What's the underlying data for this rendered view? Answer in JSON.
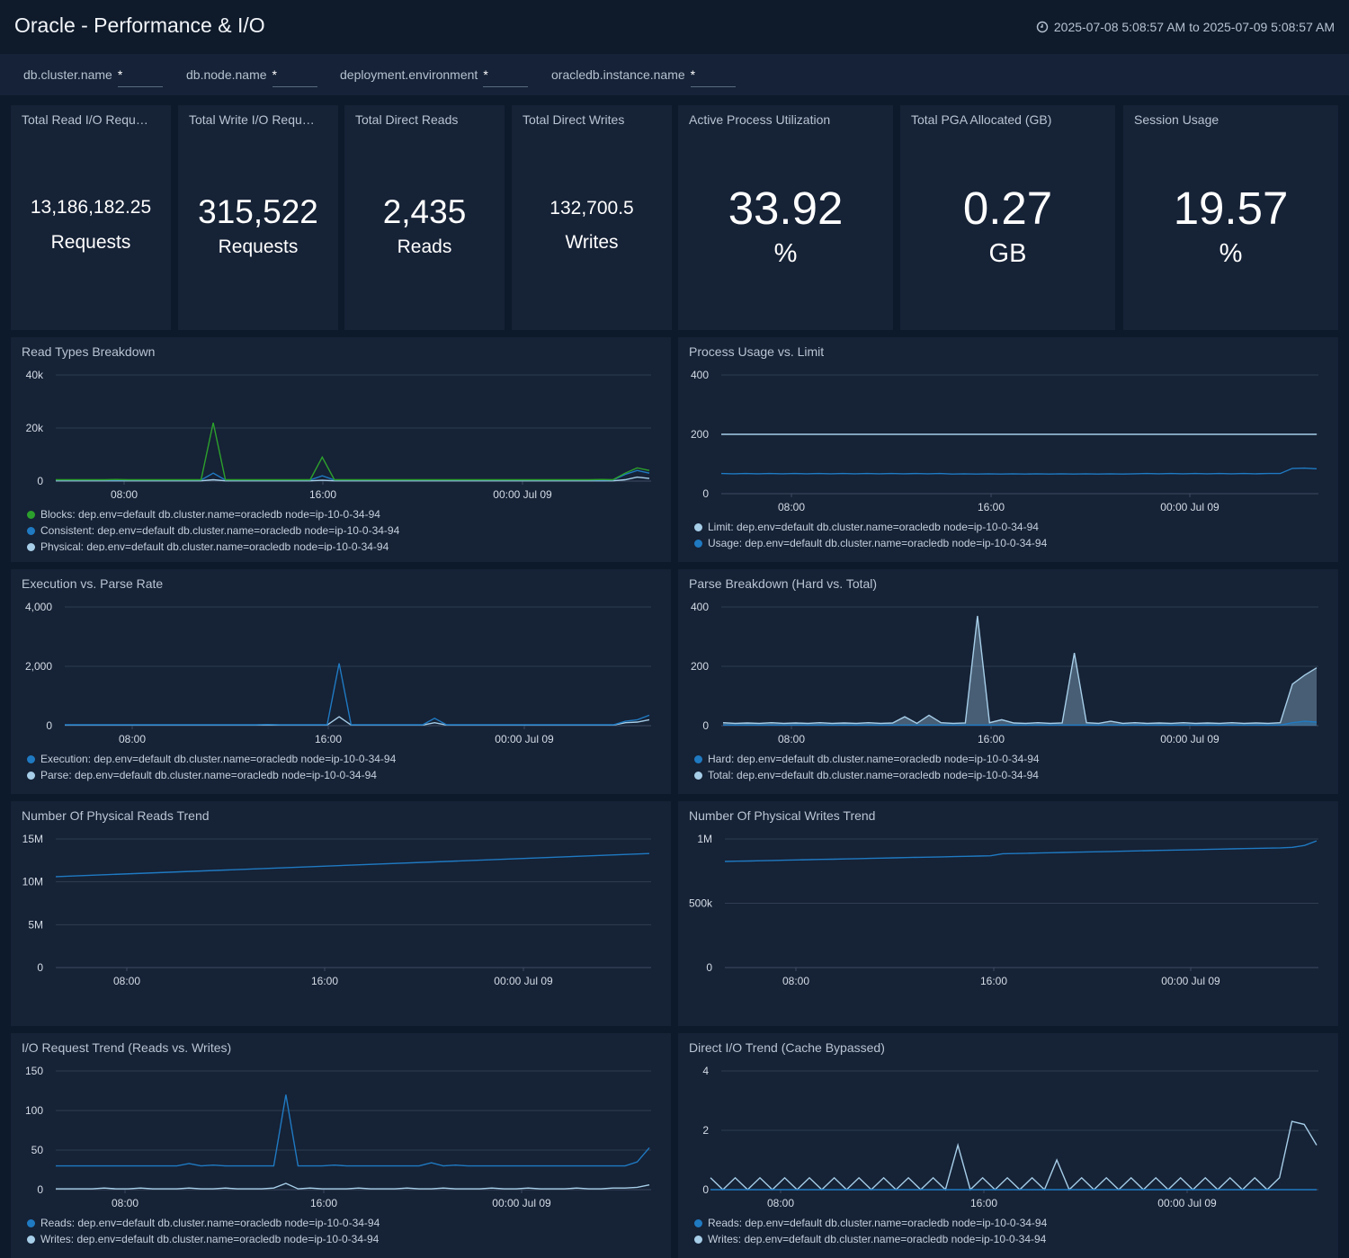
{
  "header": {
    "title": "Oracle - Performance & I/O",
    "time_range": "2025-07-08 5:08:57 AM to 2025-07-09 5:08:57 AM",
    "time_icon": "clock-icon"
  },
  "filters": [
    {
      "label": "db.cluster.name",
      "value": "*"
    },
    {
      "label": "db.node.name",
      "value": "*"
    },
    {
      "label": "deployment.environment",
      "value": "*"
    },
    {
      "label": "oracledb.instance.name",
      "value": "*"
    }
  ],
  "stats": [
    {
      "title": "Total Read I/O Requ…",
      "value": "13,186,182.25",
      "unit": "Requests"
    },
    {
      "title": "Total Write I/O Requ…",
      "value": "315,522",
      "unit": "Requests"
    },
    {
      "title": "Total Direct Reads",
      "value": "2,435",
      "unit": "Reads"
    },
    {
      "title": "Total Direct Writes",
      "value": "132,700.5",
      "unit": "Writes"
    },
    {
      "title": "Active Process Utilization",
      "value": "33.92",
      "unit": "%"
    },
    {
      "title": "Total PGA Allocated (GB)",
      "value": "0.27",
      "unit": "GB"
    },
    {
      "title": "Session Usage",
      "value": "19.57",
      "unit": "%"
    }
  ],
  "colors": {
    "blue": "#1f7ac2",
    "lightblue": "#a6cee8",
    "green": "#2ca02c",
    "grid": "#2f3d52"
  },
  "chart_data": [
    {
      "type": "line",
      "title": "Read Types Breakdown",
      "x_ticks": [
        "08:00",
        "16:00",
        "00:00 Jul 09"
      ],
      "y_ticks": [
        "0",
        "20k",
        "40k"
      ],
      "ylim": [
        0,
        40000
      ],
      "series": [
        {
          "name": "Blocks: dep.env=default db.cluster.name=oracledb node=ip-10-0-34-94",
          "color": "#2ca02c",
          "values": [
            500,
            500,
            500,
            500,
            500,
            600,
            500,
            500,
            500,
            500,
            500,
            500,
            500,
            22000,
            500,
            500,
            500,
            500,
            500,
            500,
            500,
            500,
            9000,
            500,
            500,
            500,
            500,
            500,
            500,
            500,
            500,
            500,
            500,
            500,
            500,
            500,
            500,
            500,
            500,
            500,
            500,
            500,
            500,
            500,
            500,
            600,
            500,
            3000,
            5000,
            4000
          ]
        },
        {
          "name": "Consistent: dep.env=default db.cluster.name=oracledb node=ip-10-0-34-94",
          "color": "#1f7ac2",
          "values": [
            400,
            400,
            400,
            400,
            400,
            400,
            400,
            400,
            400,
            400,
            400,
            400,
            400,
            3000,
            400,
            400,
            400,
            400,
            400,
            400,
            400,
            400,
            2000,
            400,
            400,
            400,
            400,
            400,
            400,
            400,
            400,
            400,
            400,
            400,
            400,
            400,
            400,
            400,
            400,
            400,
            400,
            400,
            400,
            400,
            400,
            400,
            400,
            2500,
            4000,
            3000
          ]
        },
        {
          "name": "Physical: dep.env=default db.cluster.name=oracledb node=ip-10-0-34-94",
          "color": "#a6cee8",
          "values": [
            100,
            100,
            100,
            100,
            100,
            100,
            100,
            100,
            100,
            100,
            100,
            100,
            100,
            500,
            100,
            100,
            100,
            100,
            100,
            100,
            100,
            100,
            300,
            100,
            100,
            100,
            100,
            100,
            100,
            100,
            100,
            100,
            100,
            100,
            100,
            100,
            100,
            100,
            100,
            100,
            100,
            100,
            100,
            100,
            100,
            100,
            100,
            500,
            1500,
            1000
          ]
        }
      ]
    },
    {
      "type": "line",
      "title": "Process Usage vs. Limit",
      "x_ticks": [
        "08:00",
        "16:00",
        "00:00 Jul 09"
      ],
      "y_ticks": [
        "0",
        "200",
        "400"
      ],
      "ylim": [
        0,
        400
      ],
      "series": [
        {
          "name": "Limit: dep.env=default db.cluster.name=oracledb node=ip-10-0-34-94",
          "color": "#a6cee8",
          "values": [
            200,
            200,
            200,
            200,
            200,
            200,
            200,
            200,
            200,
            200,
            200,
            200,
            200,
            200,
            200,
            200,
            200,
            200,
            200,
            200,
            200,
            200,
            200,
            200,
            200,
            200,
            200,
            200,
            200,
            200,
            200,
            200,
            200,
            200,
            200,
            200,
            200,
            200,
            200,
            200,
            200,
            200,
            200,
            200,
            200,
            200,
            200,
            200,
            200,
            200
          ]
        },
        {
          "name": "Usage: dep.env=default db.cluster.name=oracledb node=ip-10-0-34-94",
          "color": "#1f7ac2",
          "values": [
            68,
            67,
            68,
            67,
            68,
            67,
            68,
            67,
            68,
            67,
            68,
            67,
            68,
            67,
            68,
            67,
            68,
            67,
            68,
            66,
            67,
            66,
            67,
            66,
            67,
            66,
            67,
            66,
            67,
            66,
            67,
            66,
            67,
            66,
            67,
            68,
            67,
            68,
            67,
            68,
            67,
            68,
            67,
            68,
            67,
            68,
            68,
            85,
            86,
            84
          ]
        }
      ]
    },
    {
      "type": "line",
      "title": "Execution vs. Parse Rate",
      "x_ticks": [
        "08:00",
        "16:00",
        "00:00 Jul 09"
      ],
      "y_ticks": [
        "0",
        "2,000",
        "4,000"
      ],
      "ylim": [
        0,
        4000
      ],
      "series": [
        {
          "name": "Execution: dep.env=default db.cluster.name=oracledb node=ip-10-0-34-94",
          "color": "#1f7ac2",
          "values": [
            30,
            30,
            30,
            30,
            30,
            30,
            30,
            30,
            30,
            30,
            30,
            30,
            30,
            30,
            30,
            30,
            30,
            40,
            30,
            30,
            30,
            30,
            30,
            2100,
            30,
            30,
            30,
            30,
            30,
            30,
            30,
            250,
            30,
            30,
            30,
            30,
            30,
            30,
            30,
            30,
            30,
            30,
            30,
            30,
            30,
            30,
            30,
            150,
            200,
            350
          ]
        },
        {
          "name": "Parse: dep.env=default db.cluster.name=oracledb node=ip-10-0-34-94",
          "color": "#a6cee8",
          "values": [
            20,
            20,
            20,
            20,
            20,
            20,
            20,
            20,
            20,
            20,
            20,
            20,
            20,
            20,
            20,
            20,
            20,
            20,
            20,
            20,
            20,
            20,
            20,
            300,
            20,
            20,
            20,
            20,
            20,
            20,
            20,
            100,
            20,
            20,
            20,
            20,
            20,
            20,
            20,
            20,
            20,
            20,
            20,
            20,
            20,
            20,
            20,
            100,
            120,
            200
          ]
        }
      ]
    },
    {
      "type": "area",
      "title": "Parse Breakdown (Hard vs. Total)",
      "x_ticks": [
        "08:00",
        "16:00",
        "00:00 Jul 09"
      ],
      "y_ticks": [
        "0",
        "200",
        "400"
      ],
      "ylim": [
        0,
        400
      ],
      "series": [
        {
          "name": "Hard: dep.env=default db.cluster.name=oracledb node=ip-10-0-34-94",
          "color": "#1f7ac2",
          "values": [
            2,
            2,
            2,
            2,
            2,
            2,
            2,
            2,
            2,
            2,
            2,
            2,
            2,
            2,
            2,
            2,
            2,
            2,
            2,
            2,
            2,
            2,
            2,
            2,
            2,
            2,
            2,
            2,
            2,
            2,
            2,
            2,
            2,
            2,
            2,
            2,
            2,
            2,
            2,
            2,
            2,
            2,
            2,
            2,
            2,
            2,
            2,
            10,
            15,
            12
          ]
        },
        {
          "name": "Total: dep.env=default db.cluster.name=oracledb node=ip-10-0-34-94",
          "color": "#a6cee8",
          "values": [
            10,
            8,
            9,
            8,
            10,
            8,
            9,
            8,
            10,
            8,
            9,
            8,
            10,
            8,
            9,
            30,
            8,
            35,
            10,
            8,
            9,
            370,
            10,
            20,
            9,
            8,
            10,
            8,
            9,
            245,
            10,
            8,
            15,
            8,
            10,
            8,
            9,
            8,
            10,
            8,
            9,
            8,
            10,
            8,
            9,
            8,
            10,
            140,
            170,
            195
          ]
        }
      ]
    },
    {
      "type": "line",
      "title": "Number Of Physical Reads Trend",
      "x_ticks": [
        "08:00",
        "16:00",
        "00:00 Jul 09"
      ],
      "y_ticks": [
        "0",
        "5M",
        "10M",
        "15M"
      ],
      "ylim": [
        0,
        15000000
      ],
      "series": [
        {
          "name": "",
          "color": "#1f7ac2",
          "values": [
            10600000,
            13300000
          ]
        }
      ]
    },
    {
      "type": "line",
      "title": "Number Of Physical Writes Trend",
      "x_ticks": [
        "08:00",
        "16:00",
        "00:00 Jul 09"
      ],
      "y_ticks": [
        "0",
        "500k",
        "1M"
      ],
      "ylim": [
        0,
        1000000
      ],
      "series": [
        {
          "name": "",
          "color": "#1f7ac2",
          "values": [
            825000,
            827000,
            829000,
            831000,
            833000,
            835000,
            837000,
            839000,
            841000,
            843000,
            845000,
            847000,
            849000,
            851000,
            853000,
            855000,
            857000,
            859000,
            861000,
            863000,
            865000,
            867000,
            869000,
            885000,
            887000,
            889000,
            891000,
            893000,
            895000,
            897000,
            899000,
            901000,
            903000,
            905000,
            907000,
            909000,
            911000,
            913000,
            915000,
            917000,
            919000,
            921000,
            923000,
            925000,
            927000,
            929000,
            931000,
            935000,
            950000,
            985000
          ]
        }
      ]
    },
    {
      "type": "line",
      "title": "I/O Request Trend (Reads vs. Writes)",
      "x_ticks": [
        "08:00",
        "16:00",
        "00:00 Jul 09"
      ],
      "y_ticks": [
        "0",
        "50",
        "100",
        "150"
      ],
      "ylim": [
        0,
        150
      ],
      "series": [
        {
          "name": "Reads: dep.env=default db.cluster.name=oracledb node=ip-10-0-34-94",
          "color": "#1f7ac2",
          "values": [
            30,
            30,
            30,
            30,
            30,
            30,
            30,
            30,
            30,
            30,
            30,
            33,
            30,
            31,
            30,
            30,
            30,
            30,
            30,
            120,
            30,
            30,
            30,
            31,
            30,
            30,
            30,
            30,
            30,
            30,
            30,
            34,
            30,
            31,
            30,
            30,
            30,
            30,
            30,
            30,
            30,
            30,
            30,
            30,
            30,
            30,
            30,
            30,
            35,
            53
          ]
        },
        {
          "name": "Writes: dep.env=default db.cluster.name=oracledb node=ip-10-0-34-94",
          "color": "#a6cee8",
          "values": [
            1,
            1,
            1,
            1,
            2,
            1,
            1,
            2,
            1,
            1,
            1,
            2,
            1,
            1,
            2,
            1,
            1,
            1,
            2,
            8,
            1,
            2,
            1,
            1,
            1,
            2,
            1,
            1,
            1,
            2,
            1,
            1,
            2,
            1,
            1,
            1,
            2,
            1,
            1,
            2,
            1,
            1,
            1,
            2,
            1,
            1,
            2,
            2,
            3,
            6
          ]
        }
      ]
    },
    {
      "type": "line",
      "title": "Direct I/O Trend (Cache Bypassed)",
      "x_ticks": [
        "08:00",
        "16:00",
        "00:00 Jul 09"
      ],
      "y_ticks": [
        "0",
        "2",
        "4"
      ],
      "ylim": [
        0,
        4
      ],
      "series": [
        {
          "name": "Reads: dep.env=default db.cluster.name=oracledb node=ip-10-0-34-94",
          "color": "#1f7ac2",
          "values": [
            0,
            0,
            0,
            0,
            0,
            0,
            0,
            0,
            0,
            0,
            0,
            0,
            0,
            0,
            0,
            0,
            0,
            0,
            0,
            0,
            0,
            0,
            0,
            0,
            0,
            0,
            0,
            0,
            0,
            0,
            0,
            0,
            0,
            0,
            0,
            0,
            0,
            0,
            0,
            0,
            0,
            0,
            0,
            0,
            0,
            0,
            0,
            0,
            0,
            0
          ]
        },
        {
          "name": "Writes: dep.env=default db.cluster.name=oracledb node=ip-10-0-34-94",
          "color": "#a6cee8",
          "values": [
            0.4,
            0,
            0.4,
            0,
            0.4,
            0,
            0.4,
            0,
            0.4,
            0,
            0.4,
            0,
            0.4,
            0,
            0.4,
            0,
            0.4,
            0,
            0.4,
            0,
            1.5,
            0,
            0.4,
            0,
            0.4,
            0,
            0.4,
            0,
            1,
            0,
            0.4,
            0,
            0.4,
            0,
            0.4,
            0,
            0.4,
            0,
            0.4,
            0,
            0.4,
            0,
            0.4,
            0,
            0.4,
            0,
            0.4,
            2.3,
            2.2,
            1.5
          ]
        }
      ]
    }
  ]
}
